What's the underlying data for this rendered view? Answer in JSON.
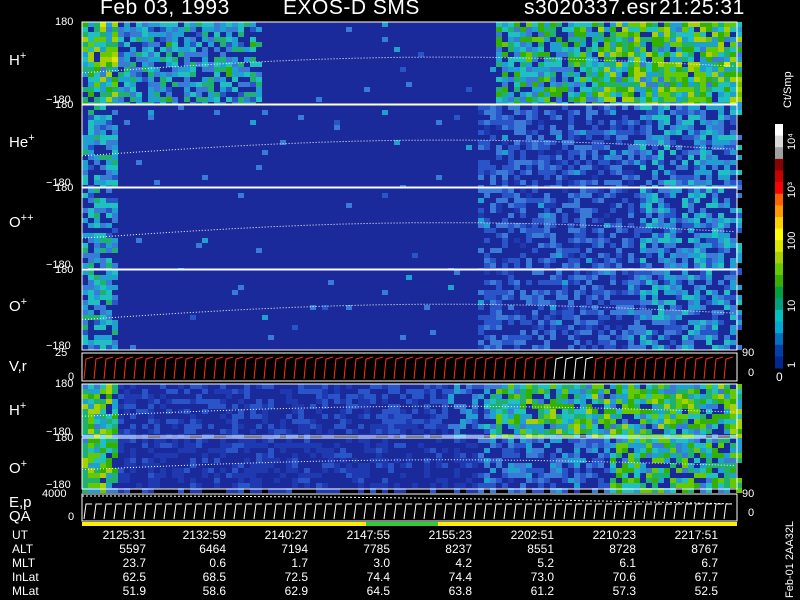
{
  "header": {
    "date": "Feb 03, 1993",
    "instrument": "EXOS-D SMS",
    "file": "s3020337.esr",
    "time": "21:25:31"
  },
  "panels": [
    {
      "label": "H",
      "sup": "+",
      "ymax": "180",
      "ymin": "−180"
    },
    {
      "label": "He",
      "sup": "+",
      "ymax": "180",
      "ymin": "−180"
    },
    {
      "label": "O",
      "sup": "++",
      "ymax": "180",
      "ymin": "−180"
    },
    {
      "label": "O",
      "sup": "+",
      "ymax": "180",
      "ymin": "−180"
    },
    {
      "label": "V,r",
      "sup": "",
      "ymax": "25",
      "ymin": "0",
      "right": "90",
      "right_min": "0"
    },
    {
      "label": "H",
      "sup": "+",
      "ymax": "180",
      "ymin": "−180"
    },
    {
      "label": "O",
      "sup": "+",
      "ymax": "180",
      "ymin": "−180"
    },
    {
      "label": "E,p",
      "sup": "",
      "ymax": "4000",
      "ymin": "0",
      "right": "90",
      "right_min": "0"
    }
  ],
  "qa_label": "QA",
  "colorbar": {
    "unit": "Ct/Smp",
    "ticks": [
      "10⁴",
      "10³",
      "100",
      "10",
      "1"
    ],
    "zero": "0",
    "colors": [
      "#ffffff",
      "#d8d8d8",
      "#a0a0a0",
      "#8b0000",
      "#c80000",
      "#ff0000",
      "#ff6000",
      "#ff9900",
      "#ffd000",
      "#ffff00",
      "#d8e800",
      "#a8d000",
      "#66c800",
      "#33b000",
      "#00a040",
      "#00a080",
      "#00c0c0",
      "#00a8d8",
      "#0070c0",
      "#0040a8",
      "#002890"
    ]
  },
  "footer": "Feb-01 2AA32L",
  "table": {
    "rows": [
      {
        "key": "UT",
        "values": [
          "2125:31",
          "2132:59",
          "2140:27",
          "2147:55",
          "2155:23",
          "2202:51",
          "2210:23",
          "2217:51"
        ]
      },
      {
        "key": "ALT",
        "values": [
          "5597",
          "6464",
          "7194",
          "7785",
          "8237",
          "8551",
          "8728",
          "8767"
        ]
      },
      {
        "key": "MLT",
        "values": [
          "23.7",
          "0.6",
          "1.7",
          "3.0",
          "4.2",
          "5.2",
          "6.1",
          "6.7"
        ]
      },
      {
        "key": "InLat",
        "values": [
          "62.5",
          "68.5",
          "72.5",
          "74.4",
          "74.4",
          "73.0",
          "70.6",
          "67.7"
        ]
      },
      {
        "key": "MLat",
        "values": [
          "51.9",
          "58.6",
          "62.9",
          "64.5",
          "63.8",
          "61.2",
          "57.3",
          "52.5"
        ]
      }
    ]
  },
  "chart_data": {
    "type": "heatmap",
    "title": "Feb 03, 1993   EXOS-D SMS",
    "x": [
      "2125:31",
      "2132:59",
      "2140:27",
      "2147:55",
      "2155:23",
      "2202:51",
      "2210:23",
      "2217:51"
    ],
    "xlabel": "UT",
    "colorbar_label": "Ct/Smp",
    "colorbar_scale": "log",
    "colorbar_range": [
      1,
      10000
    ],
    "series": [
      {
        "name": "H+",
        "ylim": [
          -180,
          180
        ]
      },
      {
        "name": "He+",
        "ylim": [
          -180,
          180
        ]
      },
      {
        "name": "O++",
        "ylim": [
          -180,
          180
        ]
      },
      {
        "name": "O+",
        "ylim": [
          -180,
          180
        ]
      },
      {
        "name": "V,r",
        "ylim": [
          0,
          25
        ],
        "right_ylim": [
          0,
          90
        ]
      },
      {
        "name": "H+",
        "ylim": [
          -180,
          180
        ]
      },
      {
        "name": "O+",
        "ylim": [
          -180,
          180
        ]
      },
      {
        "name": "E,p",
        "ylim": [
          0,
          4000
        ],
        "right_ylim": [
          0,
          90
        ]
      }
    ]
  }
}
